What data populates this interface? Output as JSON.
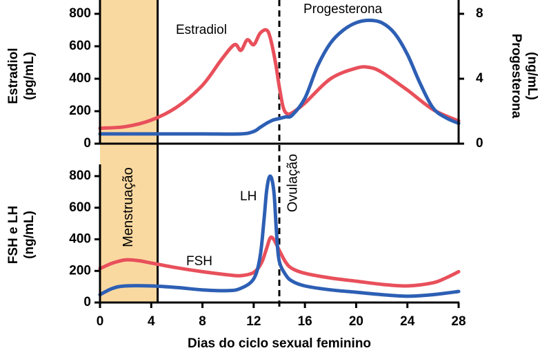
{
  "colors": {
    "estradiol": "#e8505b",
    "progesterona": "#2d5fb4",
    "fsh": "#e8505b",
    "lh": "#2d5fb4",
    "menstruacao": "#fad9a0",
    "axis": "#000000"
  },
  "chart_data": [
    {
      "type": "line",
      "panel": "top",
      "xlabel": "Dias do ciclo sexual feminino",
      "xlim": [
        0,
        28
      ],
      "xticks": [
        0,
        4,
        8,
        12,
        16,
        20,
        24,
        28
      ],
      "ylabel_left": [
        "Estradiol",
        "(pg/mL)"
      ],
      "ylim_left": [
        0,
        800
      ],
      "yticks_left": [
        0,
        200,
        400,
        600,
        800
      ],
      "ylabel_right": [
        "Progesterona",
        "(ng/mL)"
      ],
      "ylim_right": [
        0,
        8
      ],
      "yticks_right": [
        0,
        4,
        8
      ],
      "series": [
        {
          "name": "Estradiol",
          "axis": "left",
          "points": [
            [
              0,
              95
            ],
            [
              2,
              105
            ],
            [
              4,
              145
            ],
            [
              6,
              225
            ],
            [
              8,
              360
            ],
            [
              9.5,
              520
            ],
            [
              10.5,
              610
            ],
            [
              11,
              575
            ],
            [
              11.5,
              640
            ],
            [
              12,
              610
            ],
            [
              12.5,
              680
            ],
            [
              13,
              700
            ],
            [
              13.3,
              650
            ],
            [
              13.7,
              500
            ],
            [
              14,
              350
            ],
            [
              14.3,
              225
            ],
            [
              14.6,
              185
            ],
            [
              15,
              190
            ],
            [
              16,
              250
            ],
            [
              18,
              400
            ],
            [
              20,
              465
            ],
            [
              21,
              470
            ],
            [
              22,
              440
            ],
            [
              24,
              330
            ],
            [
              26,
              210
            ],
            [
              28,
              140
            ]
          ]
        },
        {
          "name": "Progesterona",
          "axis": "right",
          "points": [
            [
              0,
              0.6
            ],
            [
              4,
              0.6
            ],
            [
              8,
              0.6
            ],
            [
              11,
              0.6
            ],
            [
              12,
              0.75
            ],
            [
              12.5,
              1.0
            ],
            [
              13,
              1.25
            ],
            [
              13.5,
              1.45
            ],
            [
              14,
              1.55
            ],
            [
              14.5,
              1.65
            ],
            [
              15,
              1.75
            ],
            [
              16,
              2.8
            ],
            [
              17,
              4.8
            ],
            [
              18,
              6.2
            ],
            [
              19,
              7.0
            ],
            [
              20,
              7.45
            ],
            [
              21,
              7.6
            ],
            [
              22,
              7.45
            ],
            [
              23,
              6.8
            ],
            [
              24,
              5.5
            ],
            [
              25,
              3.7
            ],
            [
              26,
              2.2
            ],
            [
              27,
              1.6
            ],
            [
              28,
              1.25
            ]
          ]
        }
      ],
      "annotations": [
        "Estradiol",
        "Progesterona"
      ]
    },
    {
      "type": "line",
      "panel": "bottom",
      "xlabel": "Dias do ciclo sexual feminino",
      "xlim": [
        0,
        28
      ],
      "xticks": [
        0,
        4,
        8,
        12,
        16,
        20,
        24,
        28
      ],
      "ylabel_left": [
        "FSH e LH",
        "(ng/mL)"
      ],
      "ylim_left": [
        0,
        800
      ],
      "yticks_left": [
        0,
        200,
        400,
        600,
        800
      ],
      "series": [
        {
          "name": "FSH",
          "axis": "left",
          "points": [
            [
              0,
              215
            ],
            [
              1,
              250
            ],
            [
              2,
              270
            ],
            [
              3,
              265
            ],
            [
              4,
              250
            ],
            [
              6,
              220
            ],
            [
              8,
              195
            ],
            [
              10,
              175
            ],
            [
              11,
              170
            ],
            [
              12,
              190
            ],
            [
              12.6,
              250
            ],
            [
              13,
              340
            ],
            [
              13.3,
              410
            ],
            [
              13.6,
              395
            ],
            [
              14,
              330
            ],
            [
              14.5,
              255
            ],
            [
              15,
              215
            ],
            [
              16,
              185
            ],
            [
              18,
              155
            ],
            [
              20,
              135
            ],
            [
              22,
              115
            ],
            [
              24,
              105
            ],
            [
              26,
              125
            ],
            [
              27,
              155
            ],
            [
              28,
              195
            ]
          ]
        },
        {
          "name": "LH",
          "axis": "left",
          "points": [
            [
              0,
              50
            ],
            [
              1,
              90
            ],
            [
              2,
              105
            ],
            [
              4,
              105
            ],
            [
              6,
              95
            ],
            [
              8,
              80
            ],
            [
              10,
              75
            ],
            [
              11,
              90
            ],
            [
              12,
              150
            ],
            [
              12.5,
              290
            ],
            [
              12.8,
              520
            ],
            [
              13,
              700
            ],
            [
              13.2,
              790
            ],
            [
              13.4,
              785
            ],
            [
              13.6,
              680
            ],
            [
              13.8,
              420
            ],
            [
              14,
              260
            ],
            [
              14.5,
              175
            ],
            [
              15,
              135
            ],
            [
              16,
              105
            ],
            [
              18,
              80
            ],
            [
              20,
              65
            ],
            [
              22,
              50
            ],
            [
              24,
              40
            ],
            [
              26,
              50
            ],
            [
              28,
              70
            ]
          ]
        }
      ],
      "annotations": [
        "FSH",
        "LH"
      ]
    }
  ],
  "shaded_region": {
    "label": "Menstruação",
    "x": [
      0,
      4.5
    ]
  },
  "vertical_line": {
    "label": "Ovulação",
    "x": 14
  }
}
